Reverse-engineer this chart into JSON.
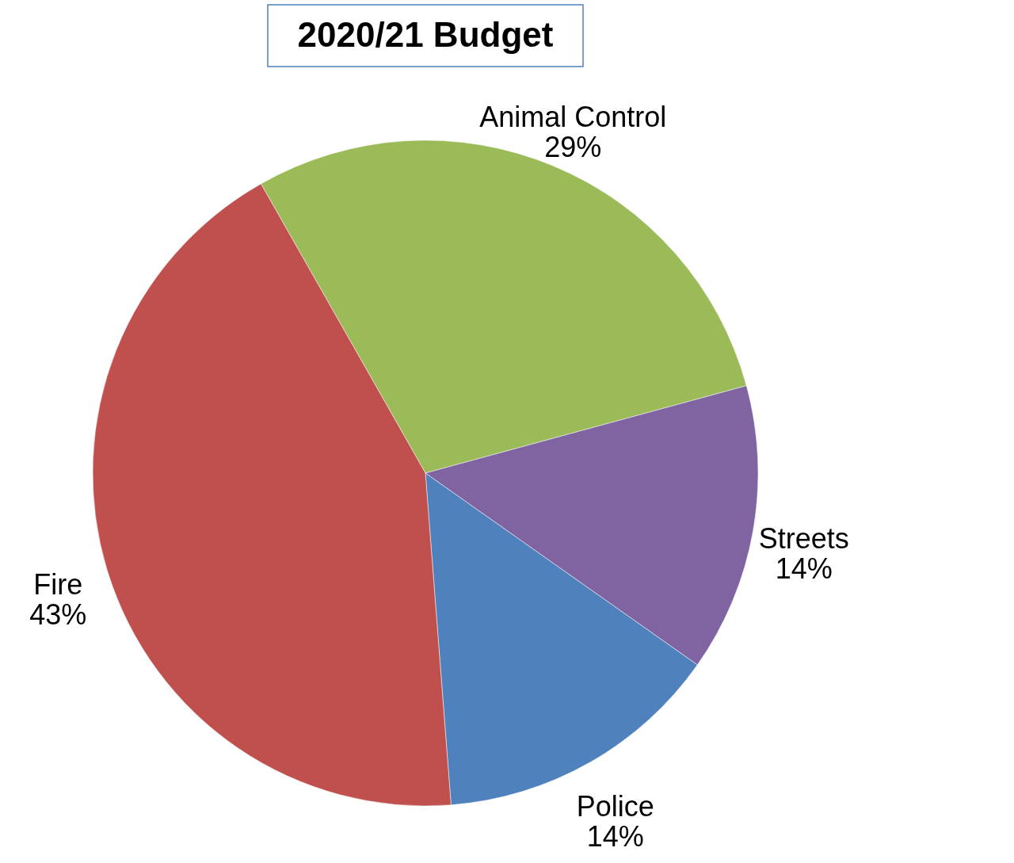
{
  "chart_data": {
    "type": "pie",
    "title": "2020/21 Budget",
    "categories": [
      "Animal Control",
      "Streets",
      "Police",
      "Fire"
    ],
    "values": [
      29,
      14,
      14,
      43
    ],
    "colors": [
      "#9bbb59",
      "#8064a2",
      "#4f81bd",
      "#c0504d"
    ],
    "value_labels": [
      "29%",
      "14%",
      "14%",
      "43%"
    ]
  }
}
